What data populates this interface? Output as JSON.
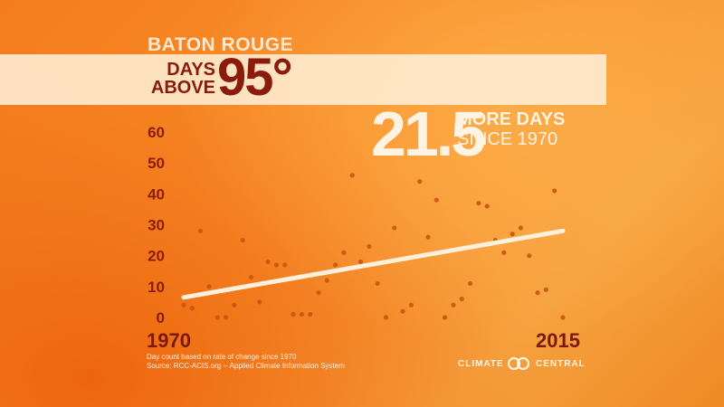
{
  "header": {
    "city": "BATON ROUGE",
    "line1": "DAYS",
    "line2": "ABOVE",
    "threshold": "95°"
  },
  "callout": {
    "value": "21.5",
    "line1": "MORE DAYS",
    "line2": "SINCE 1970"
  },
  "footnote": {
    "line1": "Day count based on rate of change since 1970",
    "line2": "Source: RCC-ACIS.org -- Applied Climate Information System"
  },
  "logo": {
    "word1": "CLIMATE",
    "word2": "CENTRAL"
  },
  "colors": {
    "accent_dark": "#8a1c0b",
    "trend_line": "#fff0dc",
    "points": "#c9550f"
  },
  "chart_data": {
    "type": "scatter",
    "title": "",
    "xlabel": "",
    "ylabel": "",
    "xlim": [
      1970,
      2015
    ],
    "ylim": [
      0,
      60
    ],
    "yticks": [
      "0",
      "10",
      "20",
      "30",
      "40",
      "50",
      "60"
    ],
    "xtick_labels": [
      "1970",
      "2015"
    ],
    "grid": false,
    "x": [
      1970,
      1971,
      1972,
      1973,
      1974,
      1975,
      1976,
      1977,
      1978,
      1979,
      1980,
      1981,
      1982,
      1983,
      1984,
      1985,
      1986,
      1987,
      1988,
      1989,
      1990,
      1991,
      1992,
      1993,
      1994,
      1995,
      1996,
      1997,
      1998,
      1999,
      2000,
      2001,
      2002,
      2003,
      2004,
      2005,
      2006,
      2007,
      2008,
      2009,
      2010,
      2011,
      2012,
      2013,
      2014,
      2015
    ],
    "y": [
      4,
      3,
      28,
      10,
      0,
      0,
      4,
      25,
      13,
      5,
      18,
      17,
      17,
      1,
      1,
      1,
      8,
      12,
      17,
      21,
      46,
      18,
      23,
      11,
      0,
      29,
      2,
      4,
      44,
      26,
      38,
      0,
      4,
      6,
      11,
      37,
      36,
      25,
      21,
      27,
      29,
      20,
      8,
      9,
      41,
      0
    ],
    "trend": {
      "x": [
        1970,
        2015
      ],
      "y": [
        6.5,
        28
      ]
    }
  }
}
